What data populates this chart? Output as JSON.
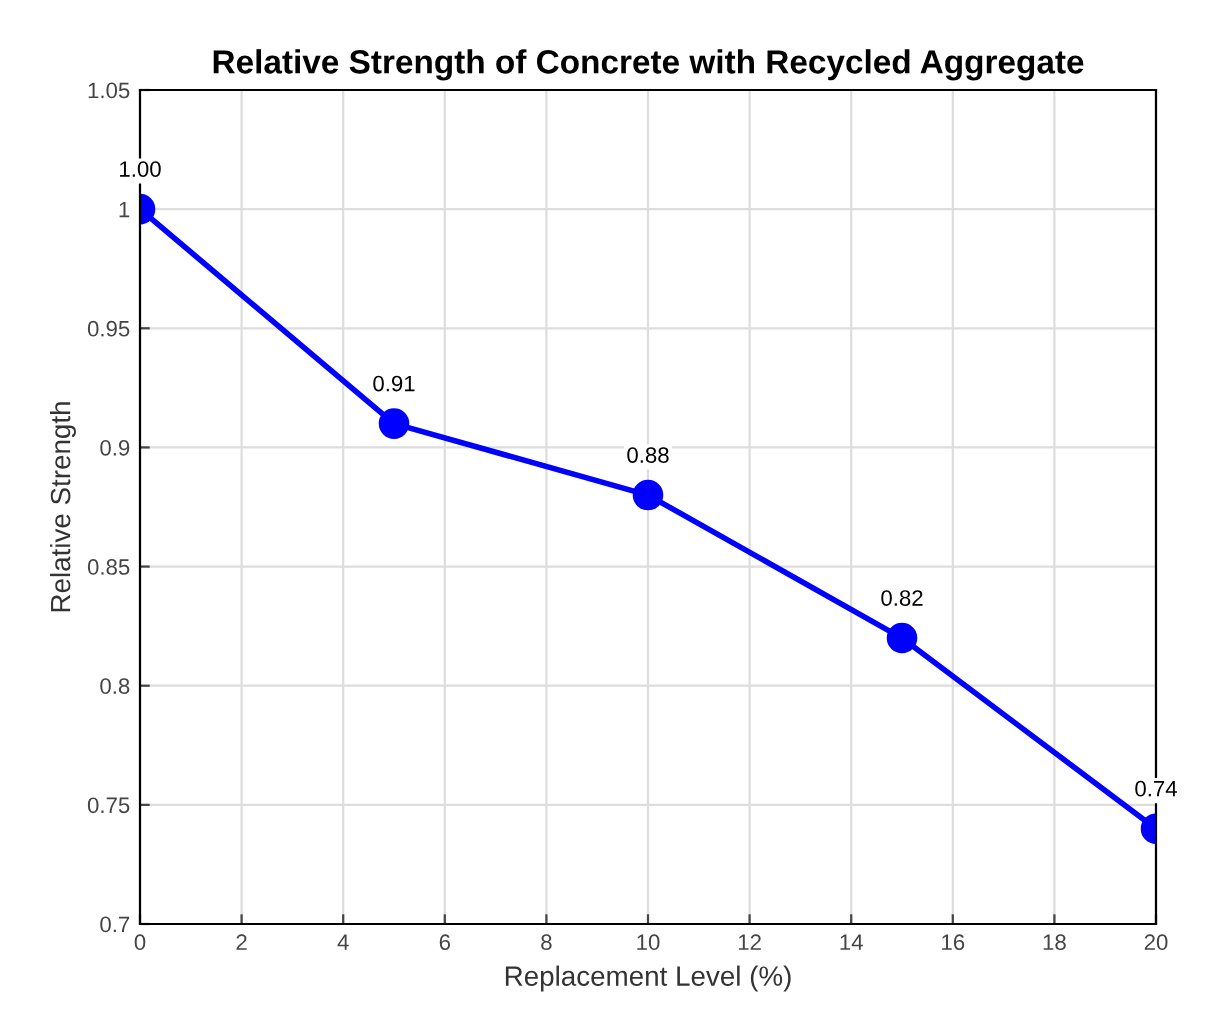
{
  "chart_data": {
    "type": "line",
    "title": "Relative Strength of Concrete with Recycled Aggregate",
    "xlabel": "Replacement Level (%)",
    "ylabel": "Relative Strength",
    "x": [
      0,
      5,
      10,
      15,
      20
    ],
    "series": [
      {
        "color": "#0000ff",
        "values": [
          1.0,
          0.91,
          0.88,
          0.82,
          0.74
        ],
        "value_labels": [
          "1.00",
          "0.91",
          "0.88",
          "0.82",
          "0.74"
        ]
      }
    ],
    "xlim": [
      0,
      20
    ],
    "xticks": [
      0,
      2,
      4,
      6,
      8,
      10,
      12,
      14,
      16,
      18,
      20
    ],
    "ylim": [
      0.7,
      1.05
    ],
    "yticks": [
      0.7,
      0.75,
      0.8,
      0.85,
      0.9,
      0.95,
      1,
      1.05
    ],
    "grid": true,
    "marker": "circle",
    "line_style": "solid"
  }
}
